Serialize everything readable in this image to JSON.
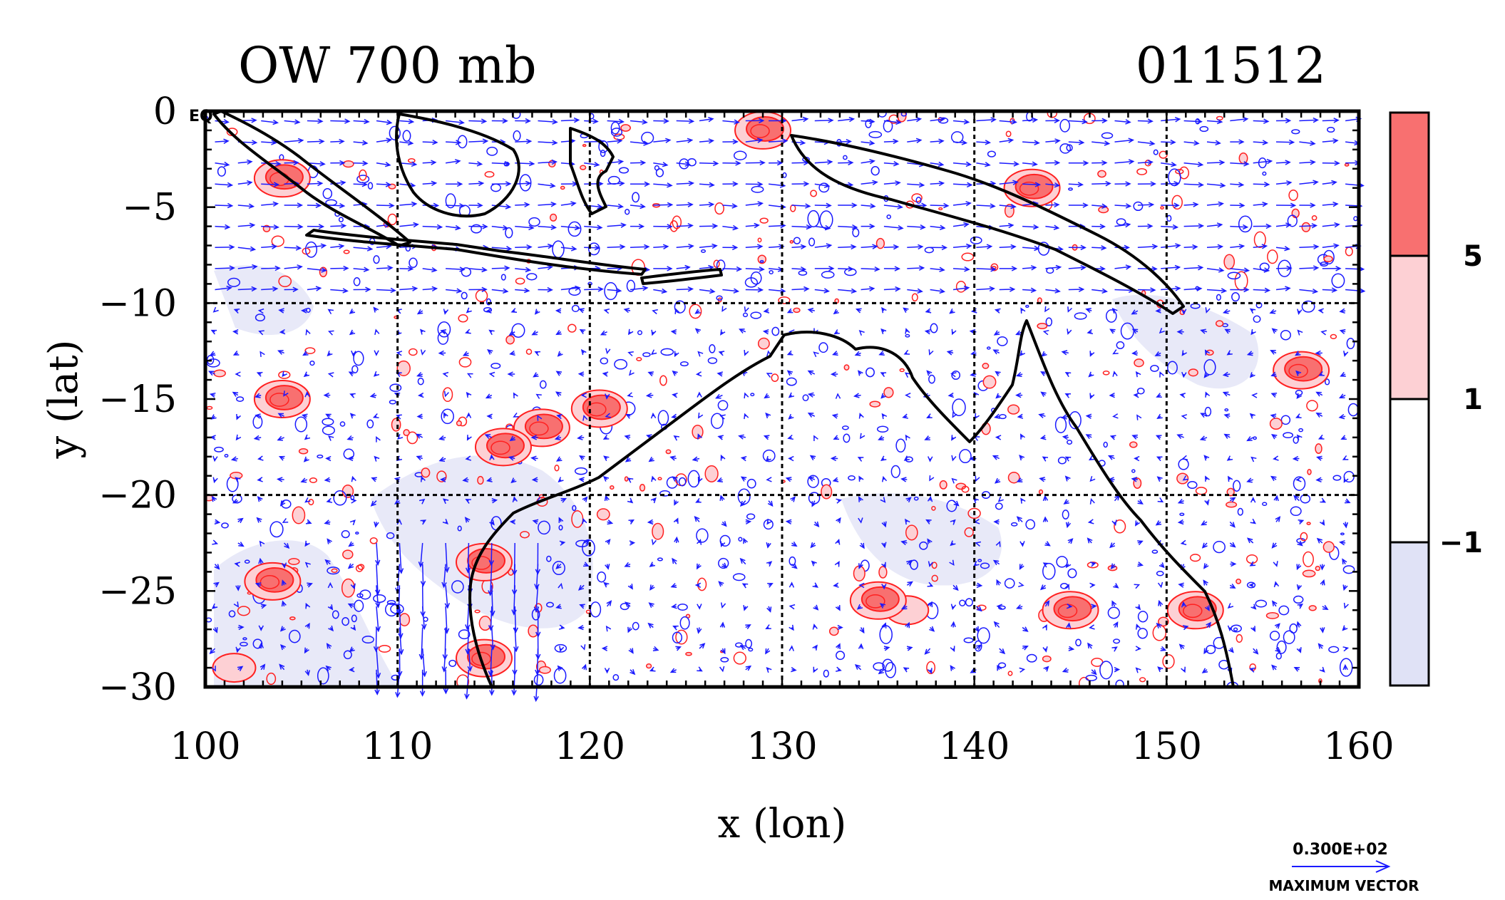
{
  "figure": {
    "title_left": "OW 700 mb",
    "title_right": "011512",
    "equator_label": "EQ",
    "xlabel": "x (lon)",
    "ylabel": "y (lat)"
  },
  "axes": {
    "x_range": [
      100,
      160
    ],
    "y_range": [
      -30,
      0
    ],
    "x_ticks": [
      100,
      110,
      120,
      130,
      140,
      150,
      160
    ],
    "y_ticks": [
      0,
      -5,
      -10,
      -15,
      -20,
      -25,
      -30
    ],
    "x_tick_labels": [
      "100",
      "110",
      "120",
      "130",
      "140",
      "150",
      "160"
    ],
    "y_tick_labels": [
      "0",
      "−5",
      "−10",
      "−15",
      "−20",
      "−25",
      "−30"
    ],
    "grid_lon": [
      110,
      120,
      130,
      140,
      150
    ],
    "grid_lat": [
      -10,
      -20
    ],
    "grid": "dashed"
  },
  "colorbar": {
    "levels": [
      -1,
      1,
      5
    ],
    "level_labels": [
      "−1",
      "1",
      "5"
    ],
    "colors": [
      "#e0e2f6",
      "#ffffff",
      "#fdd0d4",
      "#f87070"
    ]
  },
  "vector_legend": {
    "value": "0.300E+02",
    "label": "MAXIMUM VECTOR",
    "color": "#1a1aff"
  },
  "colors": {
    "coastline": "#000000",
    "positive_contour": "#ff2020",
    "negative_contour": "#1a1aff",
    "positive_fill_strong": "#f87070",
    "positive_fill_weak": "#fdd0d4",
    "negative_fill": "#e0e2f6"
  },
  "chart_data": {
    "type": "map",
    "field": "Okubo-Weiss parameter with wind vectors",
    "level": "700 mb",
    "valid": "011512",
    "lon_range": [
      100,
      160
    ],
    "lat_range": [
      -30,
      0
    ],
    "contour_levels": [
      -1,
      1,
      5
    ],
    "positive_regions": [
      {
        "lon": 117.5,
        "lat": -16.5,
        "strength": 5
      },
      {
        "lon": 120.5,
        "lat": -15.5,
        "strength": 5
      },
      {
        "lon": 115.5,
        "lat": -17.5,
        "strength": 5
      },
      {
        "lon": 104.0,
        "lat": -15.0,
        "strength": 5
      },
      {
        "lon": 103.5,
        "lat": -24.5,
        "strength": 5
      },
      {
        "lon": 114.5,
        "lat": -23.5,
        "strength": 5
      },
      {
        "lon": 114.5,
        "lat": -28.5,
        "strength": 5
      },
      {
        "lon": 136.5,
        "lat": -26.0,
        "strength": 1
      },
      {
        "lon": 145.0,
        "lat": -26.0,
        "strength": 5
      },
      {
        "lon": 151.5,
        "lat": -26.0,
        "strength": 5
      },
      {
        "lon": 157.0,
        "lat": -13.5,
        "strength": 5
      },
      {
        "lon": 135.0,
        "lat": -25.5,
        "strength": 5
      },
      {
        "lon": 143.0,
        "lat": -4.0,
        "strength": 5
      },
      {
        "lon": 129.0,
        "lat": -1.0,
        "strength": 5
      },
      {
        "lon": 104.0,
        "lat": -3.5,
        "strength": 5
      },
      {
        "lon": 101.5,
        "lat": -29.0,
        "strength": 1
      }
    ]
  }
}
